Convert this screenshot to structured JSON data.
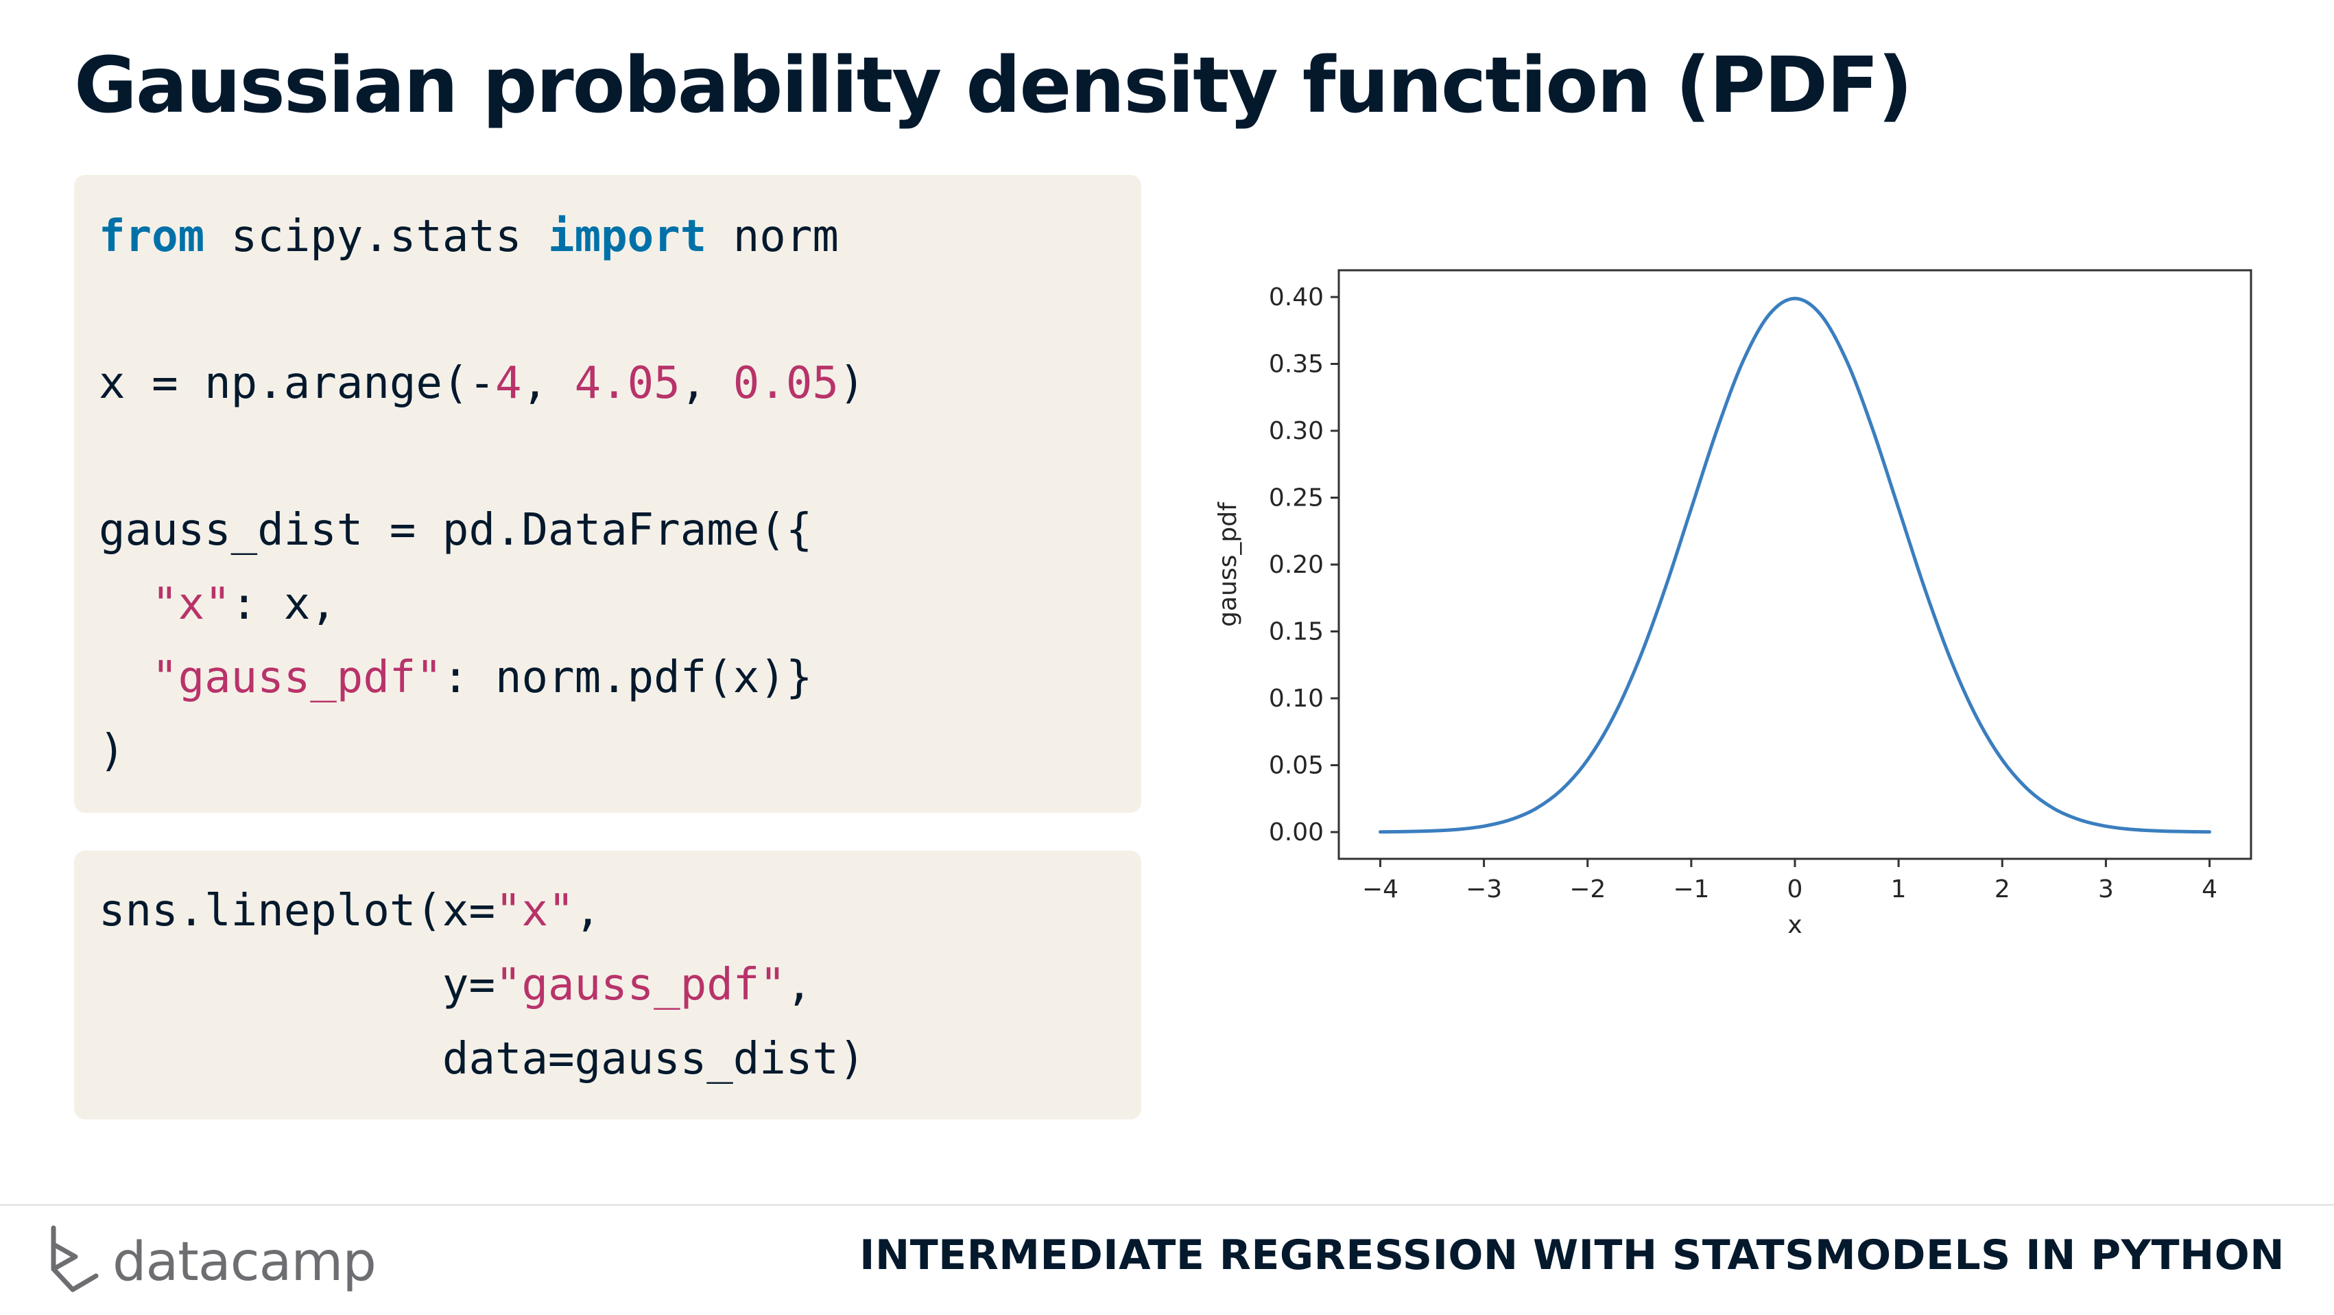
{
  "slide": {
    "title": "Gaussian probability density function (PDF)"
  },
  "code_block_1": {
    "line1": {
      "kw1": "from",
      "mid": " scipy.stats ",
      "kw2": "import",
      "rest": " norm"
    },
    "line2": {
      "a": "x = np.arange(-",
      "n1": "4",
      "b": ", ",
      "n2": "4.05",
      "c": ", ",
      "n3": "0.05",
      "d": ")"
    },
    "line3": {
      "text": "gauss_dist = pd.DataFrame({"
    },
    "line4": {
      "indent": "  ",
      "key": "\"x\"",
      "rest": ": x,"
    },
    "line5": {
      "indent": "  ",
      "key": "\"gauss_pdf\"",
      "rest": ": norm.pdf(x)}"
    },
    "line6": {
      "text": ")"
    }
  },
  "code_block_2": {
    "line1": {
      "a": "sns.lineplot(x=",
      "s": "\"x\"",
      "b": ","
    },
    "line2": {
      "indent": "             ",
      "a": "y=",
      "s": "\"gauss_pdf\"",
      "b": ","
    },
    "line3": {
      "indent": "             ",
      "text": "data=gauss_dist)"
    }
  },
  "chart_data": {
    "type": "line",
    "title": "",
    "xlabel": "x",
    "ylabel": "gauss_pdf",
    "xlim": [
      -4.4,
      4.4
    ],
    "ylim": [
      -0.02,
      0.42
    ],
    "xticks": [
      -4,
      -3,
      -2,
      -1,
      0,
      1,
      2,
      3,
      4
    ],
    "xtick_labels": [
      "−4",
      "−3",
      "−2",
      "−1",
      "0",
      "1",
      "2",
      "3",
      "4"
    ],
    "yticks": [
      0.0,
      0.05,
      0.1,
      0.15,
      0.2,
      0.25,
      0.3,
      0.35,
      0.4
    ],
    "ytick_labels": [
      "0.00",
      "0.05",
      "0.10",
      "0.15",
      "0.20",
      "0.25",
      "0.30",
      "0.35",
      "0.40"
    ],
    "grid": false,
    "series": [
      {
        "color": "#3a7ebf",
        "x": [
          -4,
          -3.75,
          -3.5,
          -3.25,
          -3,
          -2.75,
          -2.5,
          -2.25,
          -2,
          -1.75,
          -1.5,
          -1.25,
          -1,
          -0.75,
          -0.5,
          -0.25,
          0,
          0.25,
          0.5,
          0.75,
          1,
          1.25,
          1.5,
          1.75,
          2,
          2.25,
          2.5,
          2.75,
          3,
          3.25,
          3.5,
          3.75,
          4
        ],
        "y": [
          0.0001,
          0.0004,
          0.0009,
          0.002,
          0.0044,
          0.0091,
          0.0175,
          0.0317,
          0.054,
          0.0863,
          0.1295,
          0.1826,
          0.242,
          0.3011,
          0.3521,
          0.3867,
          0.3989,
          0.3867,
          0.3521,
          0.3011,
          0.242,
          0.1826,
          0.1295,
          0.0863,
          0.054,
          0.0317,
          0.0175,
          0.0091,
          0.0044,
          0.002,
          0.0009,
          0.0004,
          0.0001
        ]
      }
    ]
  },
  "footer": {
    "brand": "datacamp",
    "course": "INTERMEDIATE REGRESSION WITH STATSMODELS IN PYTHON"
  }
}
